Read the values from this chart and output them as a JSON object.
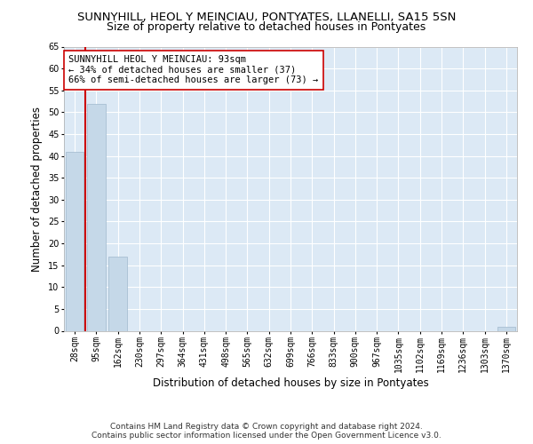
{
  "title": "SUNNYHILL, HEOL Y MEINCIAU, PONTYATES, LLANELLI, SA15 5SN",
  "subtitle": "Size of property relative to detached houses in Pontyates",
  "xlabel": "Distribution of detached houses by size in Pontyates",
  "ylabel": "Number of detached properties",
  "categories": [
    "28sqm",
    "95sqm",
    "162sqm",
    "230sqm",
    "297sqm",
    "364sqm",
    "431sqm",
    "498sqm",
    "565sqm",
    "632sqm",
    "699sqm",
    "766sqm",
    "833sqm",
    "900sqm",
    "967sqm",
    "1035sqm",
    "1102sqm",
    "1169sqm",
    "1236sqm",
    "1303sqm",
    "1370sqm"
  ],
  "values": [
    41,
    52,
    17,
    0,
    0,
    0,
    0,
    0,
    0,
    0,
    0,
    0,
    0,
    0,
    0,
    0,
    0,
    0,
    0,
    0,
    1
  ],
  "bar_color": "#c5d8e8",
  "bar_edge_color": "#a0b8cc",
  "vline_color": "#cc0000",
  "annotation_text": "SUNNYHILL HEOL Y MEINCIAU: 93sqm\n← 34% of detached houses are smaller (37)\n66% of semi-detached houses are larger (73) →",
  "annotation_box_color": "#ffffff",
  "annotation_box_edge": "#cc0000",
  "ylim": [
    0,
    65
  ],
  "yticks": [
    0,
    5,
    10,
    15,
    20,
    25,
    30,
    35,
    40,
    45,
    50,
    55,
    60,
    65
  ],
  "background_color": "#ffffff",
  "plot_background": "#dce9f5",
  "grid_color": "#ffffff",
  "footer_line1": "Contains HM Land Registry data © Crown copyright and database right 2024.",
  "footer_line2": "Contains public sector information licensed under the Open Government Licence v3.0.",
  "title_fontsize": 9.5,
  "subtitle_fontsize": 9,
  "axis_label_fontsize": 8.5,
  "tick_fontsize": 7,
  "footer_fontsize": 6.5,
  "annotation_fontsize": 7.5
}
